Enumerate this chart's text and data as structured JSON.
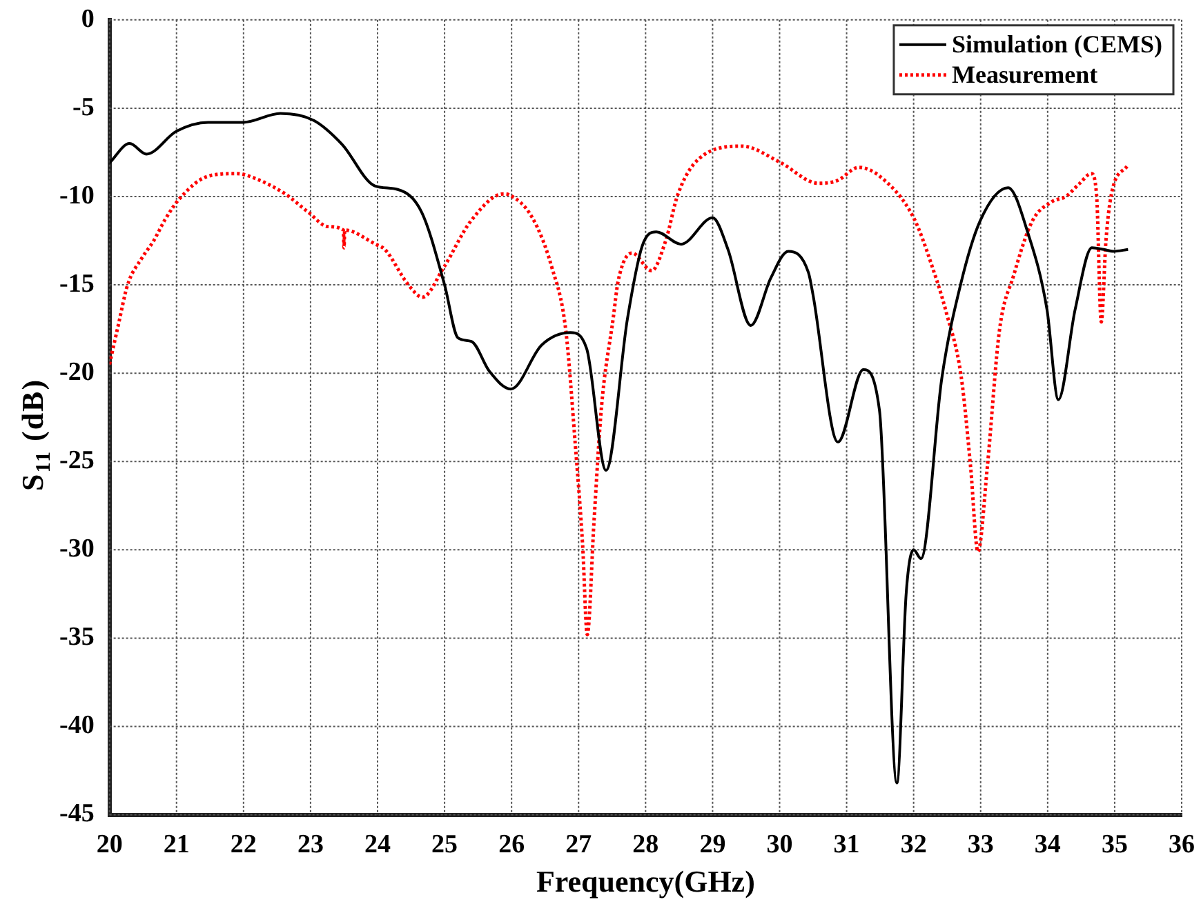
{
  "chart_data": {
    "type": "line",
    "xlabel": "Frequency(GHz)",
    "ylabel": "S$_{11}$ (dB)",
    "xlim": [
      20,
      36
    ],
    "ylim": [
      -45,
      0
    ],
    "xticks": [
      20,
      21,
      22,
      23,
      24,
      25,
      26,
      27,
      28,
      29,
      30,
      31,
      32,
      33,
      34,
      35,
      36
    ],
    "yticks": [
      -45,
      -40,
      -35,
      -30,
      -25,
      -20,
      -15,
      -10,
      -5,
      0
    ],
    "grid": true,
    "legend": "top right",
    "marker": "none",
    "series": [
      {
        "name": "Simulation (CEMS)",
        "color": "#000000",
        "line_style": "solid",
        "x": [
          20,
          20.3,
          20.55,
          21,
          21.47,
          22,
          22.55,
          23.05,
          23.47,
          23.96,
          24.3,
          24.66,
          25,
          25.2,
          25.4,
          25.67,
          25.99,
          26.45,
          26.88,
          27.12,
          27.41,
          27.73,
          27.95,
          28.16,
          28.53,
          29,
          29.23,
          29.57,
          29.87,
          30.13,
          30.43,
          30.5,
          30.87,
          31.25,
          31.49,
          31.75,
          31.89,
          32,
          32.11,
          32.42,
          32.7,
          32.99,
          33.41,
          33.7,
          33.99,
          34.16,
          34.41,
          34.66,
          34.84,
          34.98,
          35.2
        ],
        "values": [
          -8.1,
          -7,
          -7.6,
          -6.3,
          -5.8,
          -5.8,
          -5.3,
          -5.7,
          -7.05,
          -9.4,
          -9.6,
          -10.9,
          -15,
          -18,
          -18.2,
          -19.9,
          -20.9,
          -18.4,
          -17.7,
          -18.6,
          -25.5,
          -16.9,
          -12.8,
          -12,
          -12.7,
          -11.2,
          -13,
          -17.3,
          -14.6,
          -13.1,
          -14.3,
          -15.6,
          -23.9,
          -19.8,
          -22.1,
          -43.2,
          -32.4,
          -30,
          -30.5,
          -20.3,
          -15,
          -11.4,
          -9.5,
          -12,
          -16.4,
          -21.5,
          -16.4,
          -12.9,
          -13,
          -13.1,
          -13
        ]
      },
      {
        "name": "Measurement",
        "color": "#ff0000",
        "line_style": "dotted",
        "x": [
          20,
          20.13,
          20.27,
          20.48,
          20.66,
          20.83,
          21.05,
          21.47,
          21.9,
          22.19,
          22.62,
          22.97,
          23.26,
          23.49,
          23.5,
          23.51,
          23.97,
          24.11,
          24.46,
          24.67,
          24.99,
          25.39,
          25.88,
          25.96,
          26.31,
          26.6,
          26.81,
          26.95,
          27.06,
          27.13,
          27.23,
          27.34,
          27.52,
          27.59,
          27.8,
          28.09,
          28.3,
          28.48,
          28.8,
          29.44,
          30,
          30.58,
          30.86,
          31.18,
          31.5,
          32,
          32.28,
          32.49,
          32.71,
          32.85,
          32.96,
          33.1,
          33.28,
          33.49,
          33.77,
          34.06,
          34.27,
          34.48,
          34.65,
          34.73,
          34.8,
          34.87,
          34.95,
          35.2
        ],
        "values": [
          -19.5,
          -17.3,
          -15,
          -13.5,
          -12.5,
          -11.3,
          -10.1,
          -8.85,
          -8.7,
          -9,
          -9.85,
          -10.9,
          -11.7,
          -11.9,
          -12.9,
          -11.9,
          -12.7,
          -13,
          -15,
          -15.7,
          -14,
          -11.4,
          -9.85,
          -9.9,
          -11.2,
          -14,
          -17.6,
          -24,
          -29.7,
          -34.8,
          -28.4,
          -22,
          -16.8,
          -14.8,
          -13.2,
          -14.2,
          -12.5,
          -9.9,
          -7.85,
          -7.15,
          -8.05,
          -9.25,
          -9.1,
          -8.35,
          -8.87,
          -11.2,
          -14,
          -16.6,
          -20.2,
          -25.3,
          -30.1,
          -25.3,
          -17.6,
          -14.5,
          -11.4,
          -10.3,
          -10,
          -9.25,
          -8.7,
          -9.9,
          -17.1,
          -12.5,
          -9.9,
          -8.2
        ]
      }
    ]
  }
}
